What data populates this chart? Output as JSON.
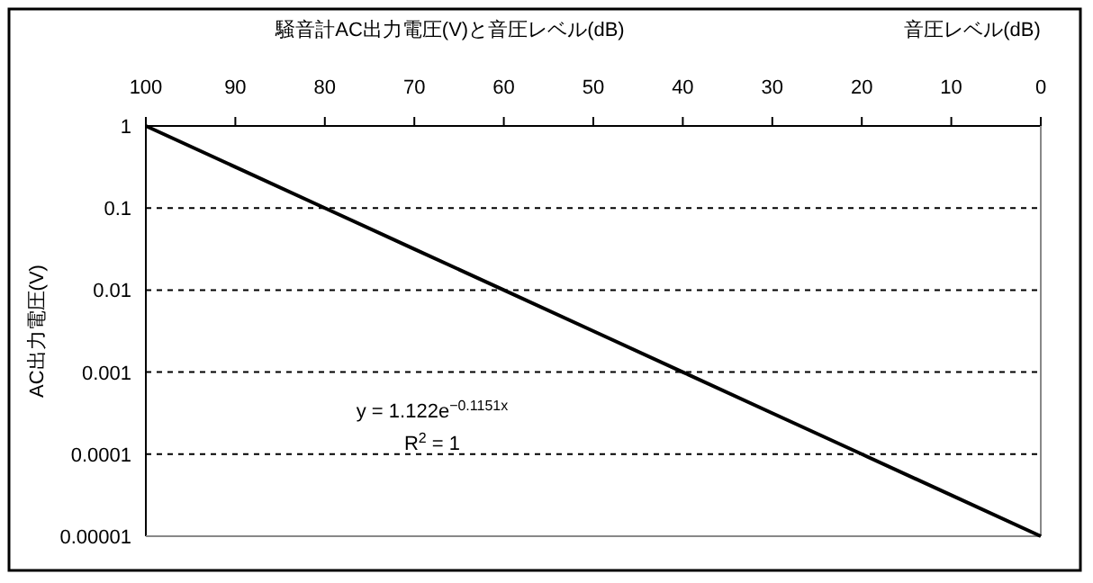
{
  "chart_data": {
    "type": "line",
    "title": "騒音計AC出力電圧(V)と音圧レベル(dB)",
    "x2label": "音圧レベル(dB)",
    "ylabel": "AC出力電圧(V)",
    "x": [
      100,
      90,
      80,
      70,
      60,
      50,
      40,
      30,
      20,
      10,
      0
    ],
    "series": [
      {
        "color": "#000000",
        "values": [
          1,
          0.316,
          0.1,
          0.0316,
          0.01,
          0.00316,
          0.001,
          0.000316,
          0.0001,
          3.16e-05,
          1e-05
        ]
      }
    ],
    "xlim": [
      100,
      0
    ],
    "xticks": [
      100,
      90,
      80,
      70,
      60,
      50,
      40,
      30,
      20,
      10,
      0
    ],
    "log": "y",
    "ylim": [
      1e-05,
      1
    ],
    "yticks": [
      {
        "value": 1e-05,
        "label": "0.00001"
      },
      {
        "value": 0.0001,
        "label": "0.0001"
      },
      {
        "value": 0.001,
        "label": "0.001"
      },
      {
        "value": 0.01,
        "label": "0.01"
      },
      {
        "value": 0.1,
        "label": "0.1"
      },
      1
    ],
    "grid": "y",
    "line_style": "solid",
    "marker": "none",
    "annotations": [
      "y = 1.122e$^{−0.1151x}$",
      "R$^{2}$ = 1"
    ]
  }
}
